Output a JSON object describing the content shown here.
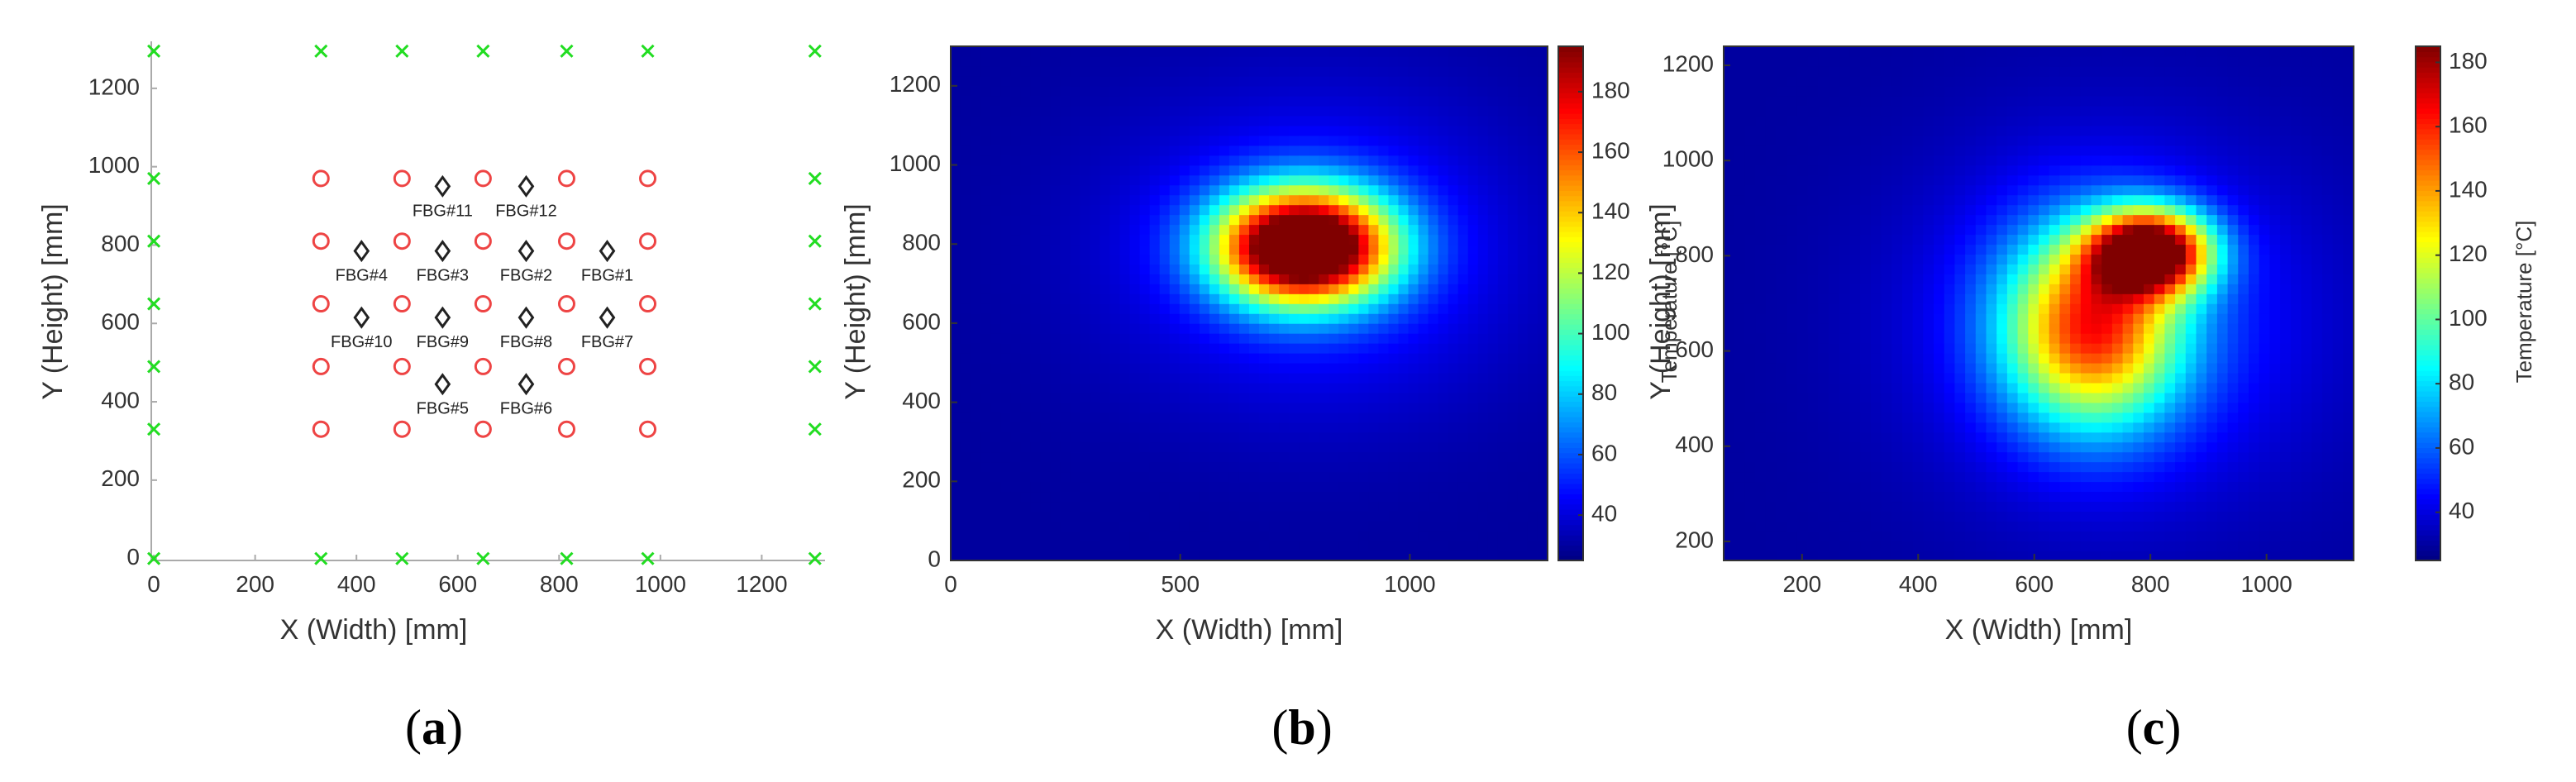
{
  "chart_data": [
    {
      "type": "scatter",
      "panel_label": [
        "(",
        "a",
        ")"
      ],
      "xlabel": "X (Width) [mm]",
      "ylabel": "Y (Height) [mm]",
      "xlim": [
        -5,
        1325
      ],
      "ylim": [
        -5,
        1320
      ],
      "xticks": [
        0,
        200,
        400,
        600,
        800,
        1000,
        1200
      ],
      "yticks": [
        0,
        200,
        400,
        600,
        800,
        1000,
        1200
      ],
      "colors": {
        "green": "#22dd22",
        "red": "#ee4444",
        "black": "#222222"
      },
      "green_points": [
        [
          0,
          1295
        ],
        [
          330,
          1295
        ],
        [
          490,
          1295
        ],
        [
          650,
          1295
        ],
        [
          815,
          1295
        ],
        [
          975,
          1295
        ],
        [
          1305,
          1295
        ],
        [
          0,
          970
        ],
        [
          1305,
          970
        ],
        [
          0,
          810
        ],
        [
          1305,
          810
        ],
        [
          0,
          650
        ],
        [
          1305,
          650
        ],
        [
          0,
          490
        ],
        [
          1305,
          490
        ],
        [
          0,
          330
        ],
        [
          1305,
          330
        ],
        [
          0,
          0
        ],
        [
          330,
          0
        ],
        [
          490,
          0
        ],
        [
          650,
          0
        ],
        [
          815,
          0
        ],
        [
          975,
          0
        ],
        [
          1305,
          0
        ]
      ],
      "red_points": [
        [
          330,
          970
        ],
        [
          490,
          970
        ],
        [
          650,
          970
        ],
        [
          815,
          970
        ],
        [
          975,
          970
        ],
        [
          330,
          810
        ],
        [
          490,
          810
        ],
        [
          650,
          810
        ],
        [
          815,
          810
        ],
        [
          975,
          810
        ],
        [
          330,
          650
        ],
        [
          490,
          650
        ],
        [
          650,
          650
        ],
        [
          815,
          650
        ],
        [
          975,
          650
        ],
        [
          330,
          490
        ],
        [
          490,
          490
        ],
        [
          650,
          490
        ],
        [
          815,
          490
        ],
        [
          975,
          490
        ],
        [
          330,
          330
        ],
        [
          490,
          330
        ],
        [
          650,
          330
        ],
        [
          815,
          330
        ],
        [
          975,
          330
        ]
      ],
      "fbg_sensors": [
        {
          "label": "FBG#11",
          "x": 570,
          "y": 950
        },
        {
          "label": "FBG#12",
          "x": 735,
          "y": 950
        },
        {
          "label": "FBG#4",
          "x": 410,
          "y": 785
        },
        {
          "label": "FBG#3",
          "x": 570,
          "y": 785
        },
        {
          "label": "FBG#2",
          "x": 735,
          "y": 785
        },
        {
          "label": "FBG#1",
          "x": 895,
          "y": 785
        },
        {
          "label": "FBG#10",
          "x": 410,
          "y": 615
        },
        {
          "label": "FBG#9",
          "x": 570,
          "y": 615
        },
        {
          "label": "FBG#8",
          "x": 735,
          "y": 615
        },
        {
          "label": "FBG#7",
          "x": 895,
          "y": 615
        },
        {
          "label": "FBG#5",
          "x": 570,
          "y": 445
        },
        {
          "label": "FBG#6",
          "x": 735,
          "y": 445
        }
      ]
    },
    {
      "type": "heatmap",
      "panel_label": [
        "(",
        "b",
        ")"
      ],
      "xlabel": "X (Width) [mm]",
      "ylabel": "Y (Height) [mm]",
      "colorbar_label": "Temperature [°C]",
      "xlim": [
        0,
        1300
      ],
      "ylim": [
        0,
        1300
      ],
      "xticks": [
        0,
        500,
        1000
      ],
      "yticks": [
        0,
        200,
        400,
        600,
        800,
        1000,
        1200
      ],
      "clim": [
        25,
        195
      ],
      "cticks": [
        40,
        60,
        80,
        100,
        120,
        140,
        160,
        180
      ],
      "background": 30,
      "hotspots": [
        {
          "x": 770,
          "y": 795,
          "peak": 200,
          "sx": 185,
          "sy": 140
        },
        {
          "x": 790,
          "y": 780,
          "peak": 25,
          "sx": 420,
          "sy": 380
        }
      ]
    },
    {
      "type": "heatmap",
      "panel_label": [
        "(",
        "c",
        ")"
      ],
      "xlabel": "X (Width) [mm]",
      "ylabel": "Y (Height) [mm]",
      "colorbar_label": "Temperature [°C]",
      "xlim": [
        65,
        1150
      ],
      "ylim": [
        160,
        1240
      ],
      "xticks": [
        200,
        400,
        600,
        800,
        1000
      ],
      "yticks": [
        200,
        400,
        600,
        800,
        1000,
        1200
      ],
      "clim": [
        25,
        185
      ],
      "cticks": [
        40,
        60,
        80,
        100,
        120,
        140,
        160,
        180
      ],
      "background": 30,
      "hotspots": [
        {
          "x": 800,
          "y": 810,
          "peak": 155,
          "sx": 100,
          "sy": 85
        },
        {
          "x": 700,
          "y": 650,
          "peak": 110,
          "sx": 150,
          "sy": 200
        },
        {
          "x": 740,
          "y": 660,
          "peak": 25,
          "sx": 330,
          "sy": 360
        }
      ]
    }
  ]
}
